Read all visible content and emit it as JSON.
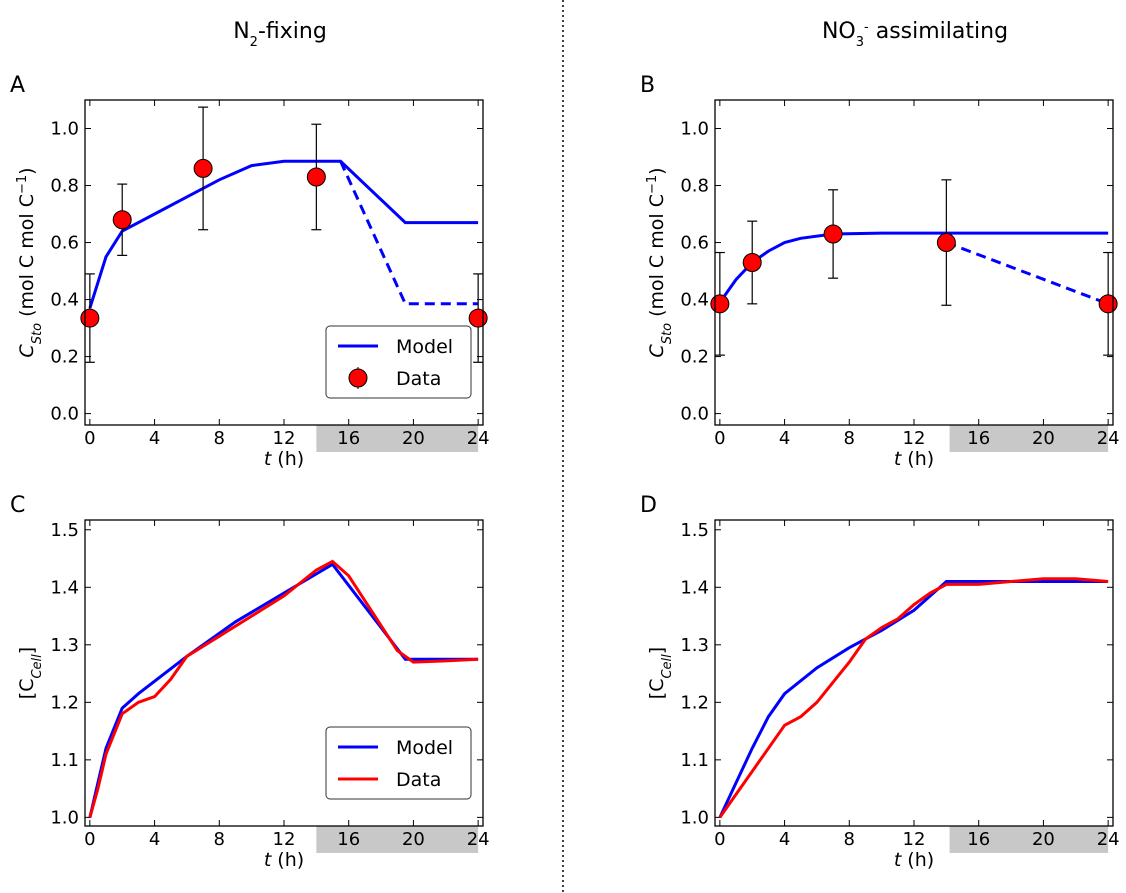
{
  "columns": [
    [
      {
        "text": "N"
      },
      {
        "text": "2",
        "shift": "sub"
      },
      {
        "text": "-fixing"
      }
    ],
    [
      {
        "text": "NO"
      },
      {
        "text": "3",
        "shift": "sub"
      },
      {
        "text": "-",
        "shift": "super"
      },
      {
        "text": " assimilating"
      }
    ]
  ],
  "chart_data": [
    {
      "type": "line",
      "panel_label": "A",
      "xlabel": [
        {
          "text": "t",
          "italic": true
        },
        {
          "text": " (h)"
        }
      ],
      "ylabel": [
        {
          "text": "C",
          "italic": true
        },
        {
          "text": "Sto",
          "italic": true,
          "shift": "sub"
        },
        {
          "text": " (mol C mol C"
        },
        {
          "text": "−1",
          "shift": "super"
        },
        {
          "text": ")"
        }
      ],
      "xlim": [
        -0.3,
        24.3
      ],
      "ylim": [
        -0.04,
        1.1
      ],
      "xticks": [
        0,
        4,
        8,
        12,
        16,
        20,
        24
      ],
      "yticks": [
        {
          "value": 0,
          "label": "0.0"
        },
        0.2,
        0.4,
        0.6,
        0.8,
        {
          "value": 1,
          "label": "1.0"
        }
      ],
      "shaded_x": [
        14,
        24
      ],
      "shade_color": "#c8c8c8",
      "legend": "lower right",
      "series": [
        {
          "name": "Model",
          "color": "#0000ff",
          "style": "solid",
          "x": [
            0,
            1,
            2,
            4,
            6,
            8,
            10,
            12,
            15.5,
            19.5,
            24
          ],
          "values": [
            0.37,
            0.55,
            0.64,
            0.7,
            0.76,
            0.82,
            0.87,
            0.885,
            0.885,
            0.67,
            0.67
          ]
        },
        {
          "color": "#0000ff",
          "style": "dashed",
          "x": [
            15.5,
            19.5,
            24
          ],
          "values": [
            0.885,
            0.385,
            0.385
          ]
        },
        {
          "name": "Data",
          "color": "#ff0000",
          "style": "marker",
          "x": [
            0,
            2,
            7,
            14,
            24
          ],
          "values": [
            0.335,
            0.68,
            0.86,
            0.83,
            0.335
          ],
          "errors": [
            0.155,
            0.125,
            0.215,
            0.185,
            0.155
          ]
        }
      ]
    },
    {
      "type": "line",
      "panel_label": "B",
      "xlabel": [
        {
          "text": "t",
          "italic": true
        },
        {
          "text": " (h)"
        }
      ],
      "ylabel": [
        {
          "text": "C",
          "italic": true
        },
        {
          "text": "Sto",
          "italic": true,
          "shift": "sub"
        },
        {
          "text": " (mol C mol C"
        },
        {
          "text": "−1",
          "shift": "super"
        },
        {
          "text": ")"
        }
      ],
      "xlim": [
        -0.3,
        24.3
      ],
      "ylim": [
        -0.04,
        1.1
      ],
      "xticks": [
        0,
        4,
        8,
        12,
        16,
        20,
        24
      ],
      "yticks": [
        {
          "value": 0,
          "label": "0.0"
        },
        0.2,
        0.4,
        0.6,
        0.8,
        {
          "value": 1,
          "label": "1.0"
        }
      ],
      "shaded_x": [
        14.2,
        24
      ],
      "shade_color": "#c8c8c8",
      "series": [
        {
          "color": "#0000ff",
          "style": "solid",
          "x": [
            0,
            1,
            2,
            3,
            4,
            5,
            7,
            10,
            24
          ],
          "values": [
            0.39,
            0.47,
            0.53,
            0.57,
            0.6,
            0.615,
            0.63,
            0.633,
            0.633
          ]
        },
        {
          "color": "#0000ff",
          "style": "dashed",
          "x": [
            14,
            24
          ],
          "values": [
            0.6,
            0.385
          ]
        },
        {
          "color": "#ff0000",
          "style": "marker",
          "x": [
            0,
            2,
            7,
            14,
            24
          ],
          "values": [
            0.385,
            0.53,
            0.63,
            0.6,
            0.385
          ],
          "errors": [
            0.18,
            0.145,
            0.155,
            0.22,
            0.18
          ]
        }
      ]
    },
    {
      "type": "line",
      "panel_label": "C",
      "xlabel": [
        {
          "text": "t",
          "italic": true
        },
        {
          "text": " (h)"
        }
      ],
      "ylabel": [
        {
          "text": "[C"
        },
        {
          "text": "Cell",
          "italic": true,
          "shift": "sub"
        },
        {
          "text": "]"
        }
      ],
      "xlim": [
        -0.3,
        24.3
      ],
      "ylim": [
        0.985,
        1.517
      ],
      "xticks": [
        0,
        4,
        8,
        12,
        16,
        20,
        24
      ],
      "yticks": [
        {
          "value": 1,
          "label": "1.0"
        },
        1.1,
        1.2,
        1.3,
        1.4,
        {
          "value": 1.5,
          "label": "1.5"
        }
      ],
      "shaded_x": [
        14,
        24
      ],
      "shade_color": "#c8c8c8",
      "legend": "lower right",
      "series": [
        {
          "name": "Model",
          "color": "#0000ff",
          "style": "solid",
          "x": [
            0,
            0.5,
            1,
            2,
            3,
            6,
            9,
            12,
            15,
            19.5,
            24
          ],
          "values": [
            1.0,
            1.06,
            1.12,
            1.19,
            1.215,
            1.28,
            1.34,
            1.39,
            1.44,
            1.275,
            1.275
          ]
        },
        {
          "name": "Data",
          "color": "#ff0000",
          "style": "solid",
          "x": [
            0,
            0.5,
            1,
            2,
            3,
            4,
            5,
            6,
            8,
            10,
            12,
            14,
            15,
            16,
            19,
            20,
            22,
            24
          ],
          "values": [
            1.0,
            1.05,
            1.11,
            1.18,
            1.2,
            1.21,
            1.24,
            1.28,
            1.315,
            1.35,
            1.385,
            1.43,
            1.445,
            1.42,
            1.29,
            1.27,
            1.272,
            1.275
          ]
        }
      ]
    },
    {
      "type": "line",
      "panel_label": "D",
      "xlabel": [
        {
          "text": "t",
          "italic": true
        },
        {
          "text": " (h)"
        }
      ],
      "ylabel": [
        {
          "text": "[C"
        },
        {
          "text": "Cell",
          "italic": true,
          "shift": "sub"
        },
        {
          "text": "]"
        }
      ],
      "xlim": [
        -0.3,
        24.3
      ],
      "ylim": [
        0.985,
        1.517
      ],
      "xticks": [
        0,
        4,
        8,
        12,
        16,
        20,
        24
      ],
      "yticks": [
        {
          "value": 1,
          "label": "1.0"
        },
        1.1,
        1.2,
        1.3,
        1.4,
        {
          "value": 1.5,
          "label": "1.5"
        }
      ],
      "shaded_x": [
        14.2,
        24
      ],
      "shade_color": "#c8c8c8",
      "series": [
        {
          "color": "#0000ff",
          "style": "solid",
          "x": [
            0,
            1,
            2,
            3,
            4,
            6,
            8,
            10,
            12,
            14,
            24
          ],
          "values": [
            1.0,
            1.06,
            1.12,
            1.175,
            1.215,
            1.26,
            1.295,
            1.325,
            1.36,
            1.41,
            1.41
          ]
        },
        {
          "color": "#ff0000",
          "style": "solid",
          "x": [
            0,
            1,
            2,
            3,
            4,
            5,
            6,
            7,
            8,
            9,
            10,
            11,
            12,
            13,
            14,
            16,
            18,
            20,
            22,
            24
          ],
          "values": [
            1.0,
            1.04,
            1.08,
            1.12,
            1.16,
            1.175,
            1.2,
            1.235,
            1.27,
            1.31,
            1.33,
            1.345,
            1.37,
            1.39,
            1.405,
            1.405,
            1.41,
            1.415,
            1.415,
            1.41
          ]
        }
      ]
    }
  ]
}
